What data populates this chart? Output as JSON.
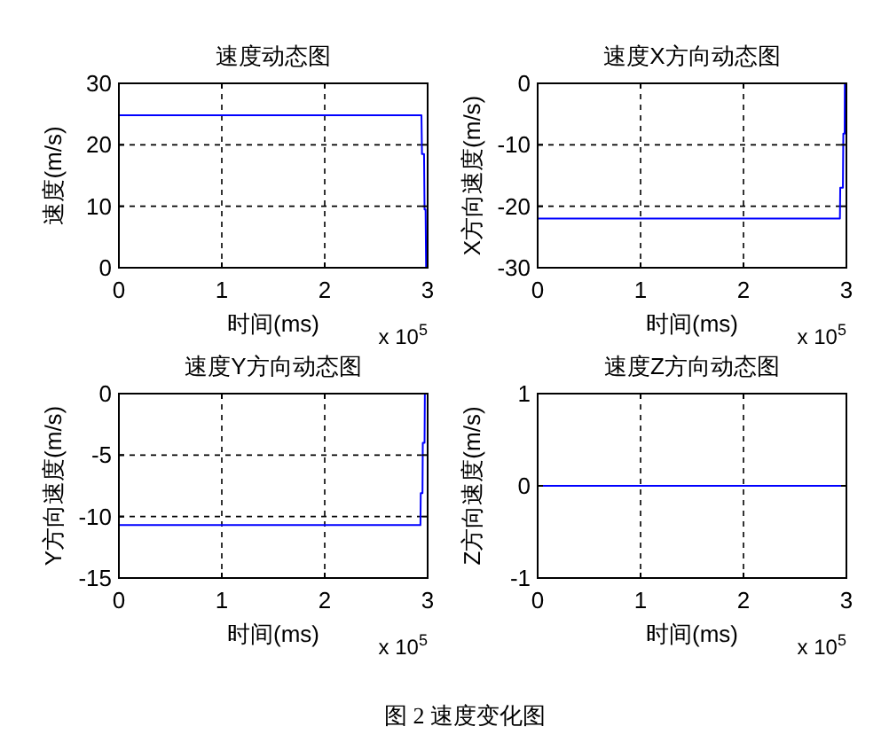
{
  "chart_data": [
    {
      "type": "line",
      "title": "速度动态图",
      "xlabel": "时间(ms)",
      "ylabel": "速度(m/s)",
      "x": [
        0,
        2.94,
        2.945,
        2.965,
        2.97,
        2.98,
        2.985
      ],
      "series": [
        {
          "color": "#0000ff",
          "values": [
            24.8,
            24.8,
            18.5,
            18.5,
            9.5,
            9.5,
            0
          ]
        }
      ],
      "xlim": [
        0,
        3
      ],
      "xticks": [
        0,
        1,
        2,
        3
      ],
      "ylim": [
        0,
        30
      ],
      "yticks": [
        0,
        10,
        20,
        30
      ],
      "grid": true,
      "annotations": [
        "x 10$^{5}$"
      ]
    },
    {
      "type": "line",
      "title": "速度X方向动态图",
      "xlabel": "时间(ms)",
      "ylabel": "X方向速度(m/s)",
      "x": [
        0,
        2.937,
        2.94,
        2.966,
        2.97,
        2.983,
        2.985
      ],
      "series": [
        {
          "color": "#0000ff",
          "values": [
            -22,
            -22,
            -17,
            -17,
            -8.2,
            -8.2,
            0
          ]
        }
      ],
      "xlim": [
        0,
        3
      ],
      "xticks": [
        0,
        1,
        2,
        3
      ],
      "ylim": [
        -30,
        0
      ],
      "yticks": [
        -30,
        -20,
        -10,
        0
      ],
      "grid": true,
      "annotations": [
        "x 10$^{5}$"
      ]
    },
    {
      "type": "line",
      "title": "速度Y方向动态图",
      "xlabel": "时间(ms)",
      "ylabel": "Y方向速度(m/s)",
      "x": [
        0,
        2.93,
        2.933,
        2.95,
        2.953,
        2.97,
        2.973
      ],
      "series": [
        {
          "color": "#0000ff",
          "values": [
            -10.7,
            -10.7,
            -8.1,
            -8.1,
            -4,
            -4,
            0
          ]
        }
      ],
      "xlim": [
        0,
        3
      ],
      "xticks": [
        0,
        1,
        2,
        3
      ],
      "ylim": [
        -15,
        0
      ],
      "yticks": [
        -15,
        -10,
        -5,
        0
      ],
      "grid": true,
      "annotations": [
        "x 10$^{5}$"
      ]
    },
    {
      "type": "line",
      "title": "速度Z方向动态图",
      "xlabel": "时间(ms)",
      "ylabel": "Z方向速度(m/s)",
      "x": [
        0,
        3
      ],
      "series": [
        {
          "color": "#0000ff",
          "values": [
            0,
            0
          ]
        }
      ],
      "xlim": [
        0,
        3
      ],
      "xticks": [
        0,
        1,
        2,
        3
      ],
      "ylim": [
        -1,
        1
      ],
      "yticks": [
        -1,
        0,
        1
      ],
      "grid": true,
      "annotations": [
        "x 10$^{5}$",
        "图 2 速度变化图"
      ]
    }
  ]
}
